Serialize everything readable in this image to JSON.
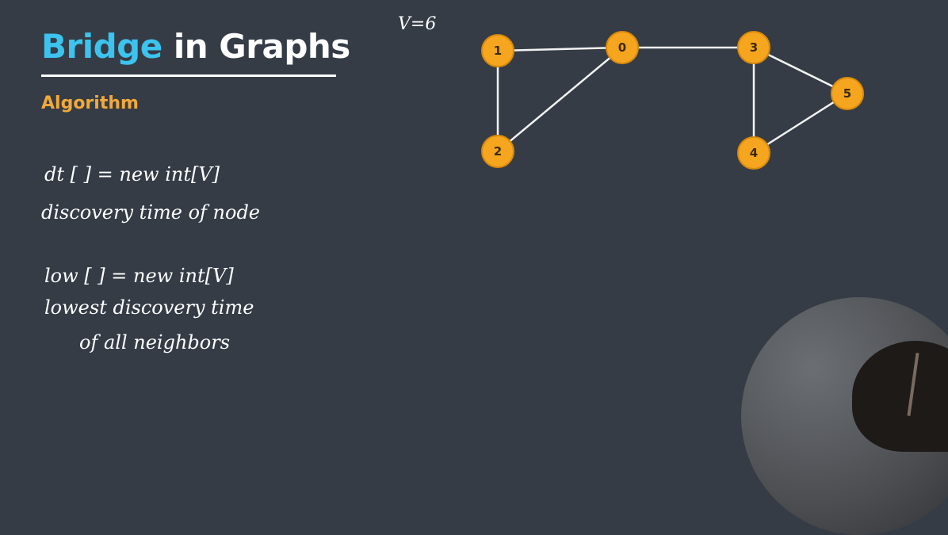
{
  "title": {
    "accent": "Bridge",
    "rest": "in Graphs"
  },
  "subtitle": "Algorithm",
  "notes": {
    "line1": "dt [ ] = new int[V]",
    "line2": "discovery time of node",
    "line3": "low [ ] = new int[V]",
    "line4": "lowest discovery time",
    "line5": "of all neighbors"
  },
  "vertex_count": "V=6",
  "graph": {
    "nodes": [
      "0",
      "1",
      "2",
      "3",
      "4",
      "5"
    ],
    "edges": [
      [
        "1",
        "0"
      ],
      [
        "0",
        "3"
      ],
      [
        "1",
        "2"
      ],
      [
        "2",
        "0"
      ],
      [
        "3",
        "5"
      ],
      [
        "3",
        "4"
      ],
      [
        "4",
        "5"
      ]
    ]
  },
  "colors": {
    "title_accent": "#3cc3ee",
    "subtitle": "#f2a93b",
    "node_fill": "#f5a51e",
    "background": "#353c46"
  },
  "webcam": "presenter-webcam"
}
